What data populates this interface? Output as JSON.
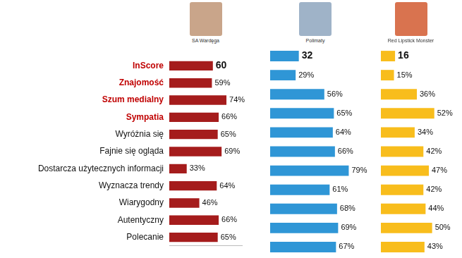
{
  "chart_data": [
    {
      "type": "bar",
      "orientation": "horizontal",
      "title": "SA Wardęga",
      "categories": [
        "InScore",
        "Znajomość",
        "Szum medialny",
        "Sympatia",
        "Wyróżnia się",
        "Fajnie się ogląda",
        "Dostarcza użytecznych informacji",
        "Wyznacza trendy",
        "Wiarygodny",
        "Autentyczny",
        "Polecanie"
      ],
      "values": [
        60,
        59,
        74,
        66,
        65,
        69,
        33,
        64,
        46,
        66,
        65
      ],
      "value_labels": [
        "60",
        "59%",
        "74%",
        "66%",
        "65%",
        "69%",
        "33%",
        "64%",
        "46%",
        "66%",
        "65%"
      ],
      "color": "#a51c1c",
      "xlim": [
        15,
        90
      ],
      "xticks": [],
      "grid": false,
      "data_labels": true,
      "tick_labels": "y"
    },
    {
      "type": "bar",
      "orientation": "horizontal",
      "title": "Polimaty",
      "categories": [
        "InScore",
        "Znajomość",
        "Szum medialny",
        "Sympatia",
        "Wyróżnia się",
        "Fajnie się ogląda",
        "Dostarcza użytecznych informacji",
        "Wyznacza trendy",
        "Wiarygodny",
        "Autentyczny",
        "Polecanie"
      ],
      "values": [
        32,
        29,
        56,
        65,
        64,
        66,
        79,
        61,
        68,
        69,
        67
      ],
      "value_labels": [
        "32",
        "29%",
        "56%",
        "65%",
        "64%",
        "66%",
        "79%",
        "61%",
        "68%",
        "69%",
        "67%"
      ],
      "color": "#2f96d6",
      "xlim": [
        5,
        90
      ],
      "xticks": [],
      "grid": false,
      "data_labels": true,
      "tick_labels": false
    },
    {
      "type": "bar",
      "orientation": "horizontal",
      "title": "Red Lipstick Monster",
      "categories": [
        "InScore",
        "Znajomość",
        "Szum medialny",
        "Sympatia",
        "Wyróżnia się",
        "Fajnie się ogląda",
        "Dostarcza użytecznych informacji",
        "Wyznacza trendy",
        "Wiarygodny",
        "Autentyczny",
        "Polecanie"
      ],
      "values": [
        16,
        15,
        36,
        52,
        34,
        42,
        47,
        42,
        44,
        50,
        43
      ],
      "value_labels": [
        "16",
        "15%",
        "36%",
        "52%",
        "34%",
        "42%",
        "47%",
        "42%",
        "44%",
        "50%",
        "43%"
      ],
      "color": "#f8bd1c",
      "xlim": [
        3,
        58
      ],
      "xticks": [],
      "grid": false,
      "data_labels": true,
      "tick_labels": false
    }
  ]
}
